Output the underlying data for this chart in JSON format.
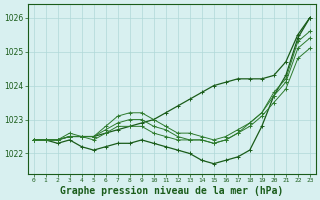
{
  "background_color": "#d8f0f0",
  "grid_color": "#b0d8d8",
  "line_color_dark": "#1a5c1a",
  "line_color_mid": "#2d7a2d",
  "xlabel": "Graphe pression niveau de la mer (hPa)",
  "xlabel_fontsize": 7,
  "ylabel_ticks": [
    1022,
    1023,
    1024,
    1025,
    1026
  ],
  "xlim": [
    -0.5,
    23.5
  ],
  "ylim": [
    1021.4,
    1026.4
  ],
  "hours": [
    0,
    1,
    2,
    3,
    4,
    5,
    6,
    7,
    8,
    9,
    10,
    11,
    12,
    13,
    14,
    15,
    16,
    17,
    18,
    19,
    20,
    21,
    22,
    23
  ],
  "series": [
    [
      1022.4,
      1022.4,
      1022.4,
      1022.5,
      1022.5,
      1022.5,
      1022.6,
      1022.7,
      1022.8,
      1022.9,
      1023.0,
      1023.2,
      1023.4,
      1023.6,
      1023.8,
      1024.0,
      1024.1,
      1024.2,
      1024.2,
      1024.2,
      1024.3,
      1024.7,
      1025.5,
      1026.0
    ],
    [
      1022.4,
      1022.4,
      1022.3,
      1022.4,
      1022.2,
      1022.1,
      1022.2,
      1022.3,
      1022.3,
      1022.4,
      1022.3,
      1022.2,
      1022.1,
      1022.0,
      1021.8,
      1021.7,
      1021.8,
      1021.9,
      1022.1,
      1022.8,
      1023.7,
      1024.3,
      1025.4,
      1026.0
    ],
    [
      1022.4,
      1022.4,
      1022.4,
      1022.5,
      1022.5,
      1022.4,
      1022.6,
      1022.8,
      1022.8,
      1022.8,
      1022.6,
      1022.5,
      1022.4,
      1022.4,
      1022.4,
      1022.3,
      1022.4,
      1022.6,
      1022.8,
      1023.1,
      1023.5,
      1023.9,
      1024.8,
      1025.1
    ],
    [
      1022.4,
      1022.4,
      1022.4,
      1022.5,
      1022.5,
      1022.5,
      1022.7,
      1022.9,
      1023.0,
      1023.0,
      1022.8,
      1022.7,
      1022.5,
      1022.4,
      1022.4,
      1022.3,
      1022.4,
      1022.6,
      1022.9,
      1023.2,
      1023.7,
      1024.1,
      1025.1,
      1025.4
    ],
    [
      1022.4,
      1022.4,
      1022.4,
      1022.6,
      1022.5,
      1022.5,
      1022.8,
      1023.1,
      1023.2,
      1023.2,
      1023.0,
      1022.8,
      1022.6,
      1022.6,
      1022.5,
      1022.4,
      1022.5,
      1022.7,
      1022.9,
      1023.2,
      1023.8,
      1024.2,
      1025.3,
      1025.6
    ]
  ]
}
